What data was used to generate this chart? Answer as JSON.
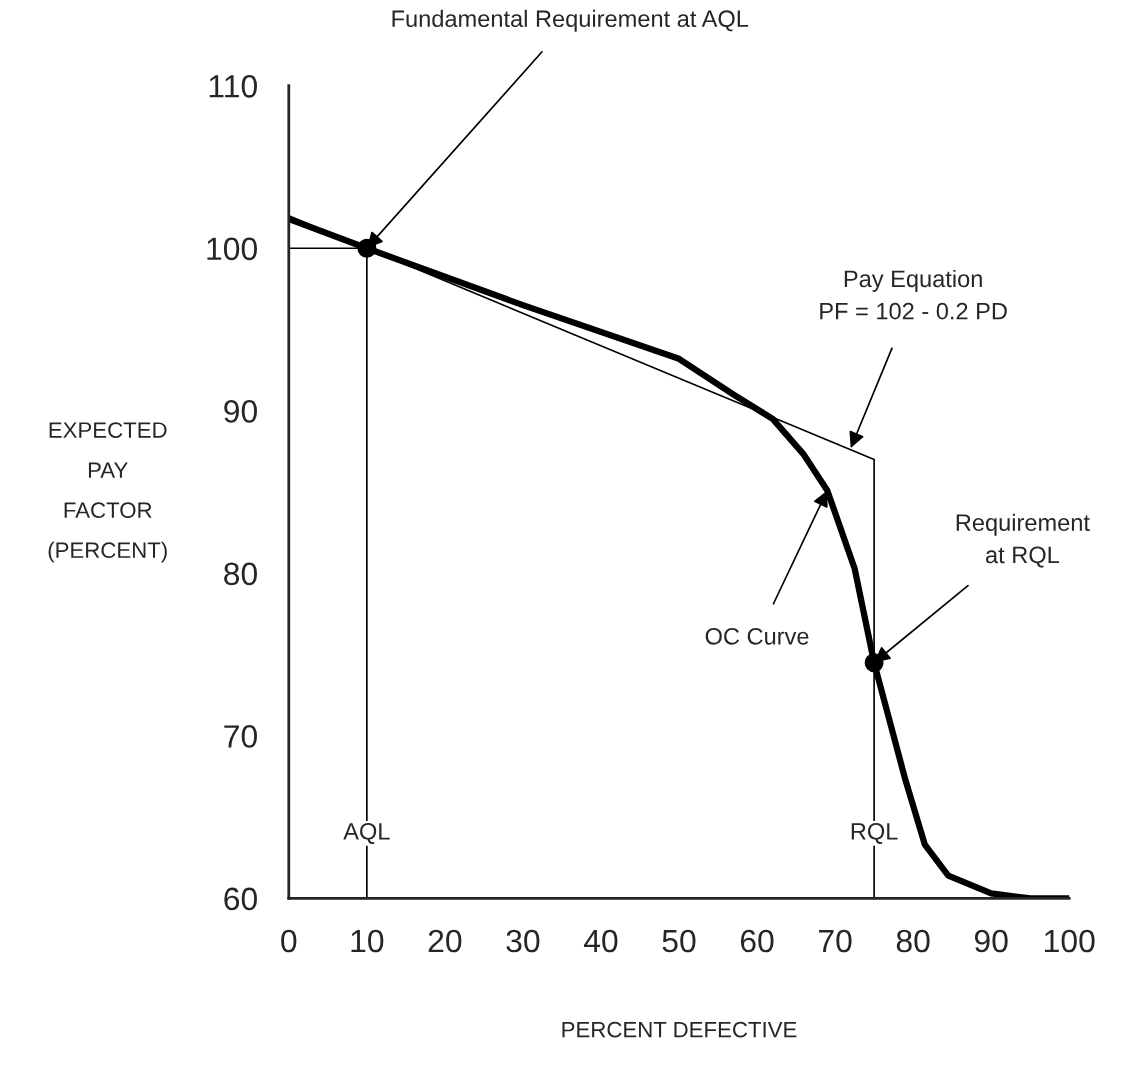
{
  "chart_data": {
    "type": "line",
    "xlabel": "PERCENT DEFECTIVE",
    "ylabel": "EXPECTED\nPAY\nFACTOR\n(PERCENT)",
    "xlim": [
      0,
      100
    ],
    "ylim": [
      60,
      110
    ],
    "xticks": [
      0,
      10,
      20,
      30,
      40,
      50,
      60,
      70,
      80,
      90,
      100
    ],
    "yticks": [
      60,
      70,
      80,
      90,
      100,
      110
    ],
    "grid": false,
    "legend": false,
    "series": [
      {
        "type": "line",
        "color": "#000000",
        "x": [
          0,
          10,
          30,
          50,
          57,
          62,
          66,
          69,
          72.5,
          75,
          79,
          81.5,
          84.5,
          90,
          95,
          100
        ],
        "values": [
          101.8,
          100,
          96.5,
          93.2,
          91.0,
          89.5,
          87.3,
          85.1,
          80.3,
          74.5,
          67.3,
          63.3,
          61.4,
          60.3,
          60,
          60
        ]
      },
      {
        "type": "line",
        "color": "#000000",
        "x": [
          0,
          75,
          75
        ],
        "values": [
          102,
          87,
          60
        ]
      },
      {
        "type": "line",
        "color": "#000000",
        "x": [
          0,
          10,
          10
        ],
        "values": [
          100,
          100,
          60
        ]
      },
      {
        "type": "scatter",
        "color": "#000000",
        "marker": "circle",
        "x": [
          10,
          75
        ],
        "values": [
          100,
          74.5
        ]
      }
    ],
    "annotations": [
      {
        "text": "Fundamental Requirement at AQL",
        "x": 10,
        "y": 100
      },
      {
        "text": "Pay Equation\nPF = 102 - 0.2 PD",
        "x": 72,
        "y": 87.7
      },
      {
        "text": "Requirement\nat RQL",
        "x": 75,
        "y": 74.5
      },
      {
        "text": "OC Curve",
        "x": 69,
        "y": 85.1
      },
      "AQL",
      "RQL"
    ]
  }
}
